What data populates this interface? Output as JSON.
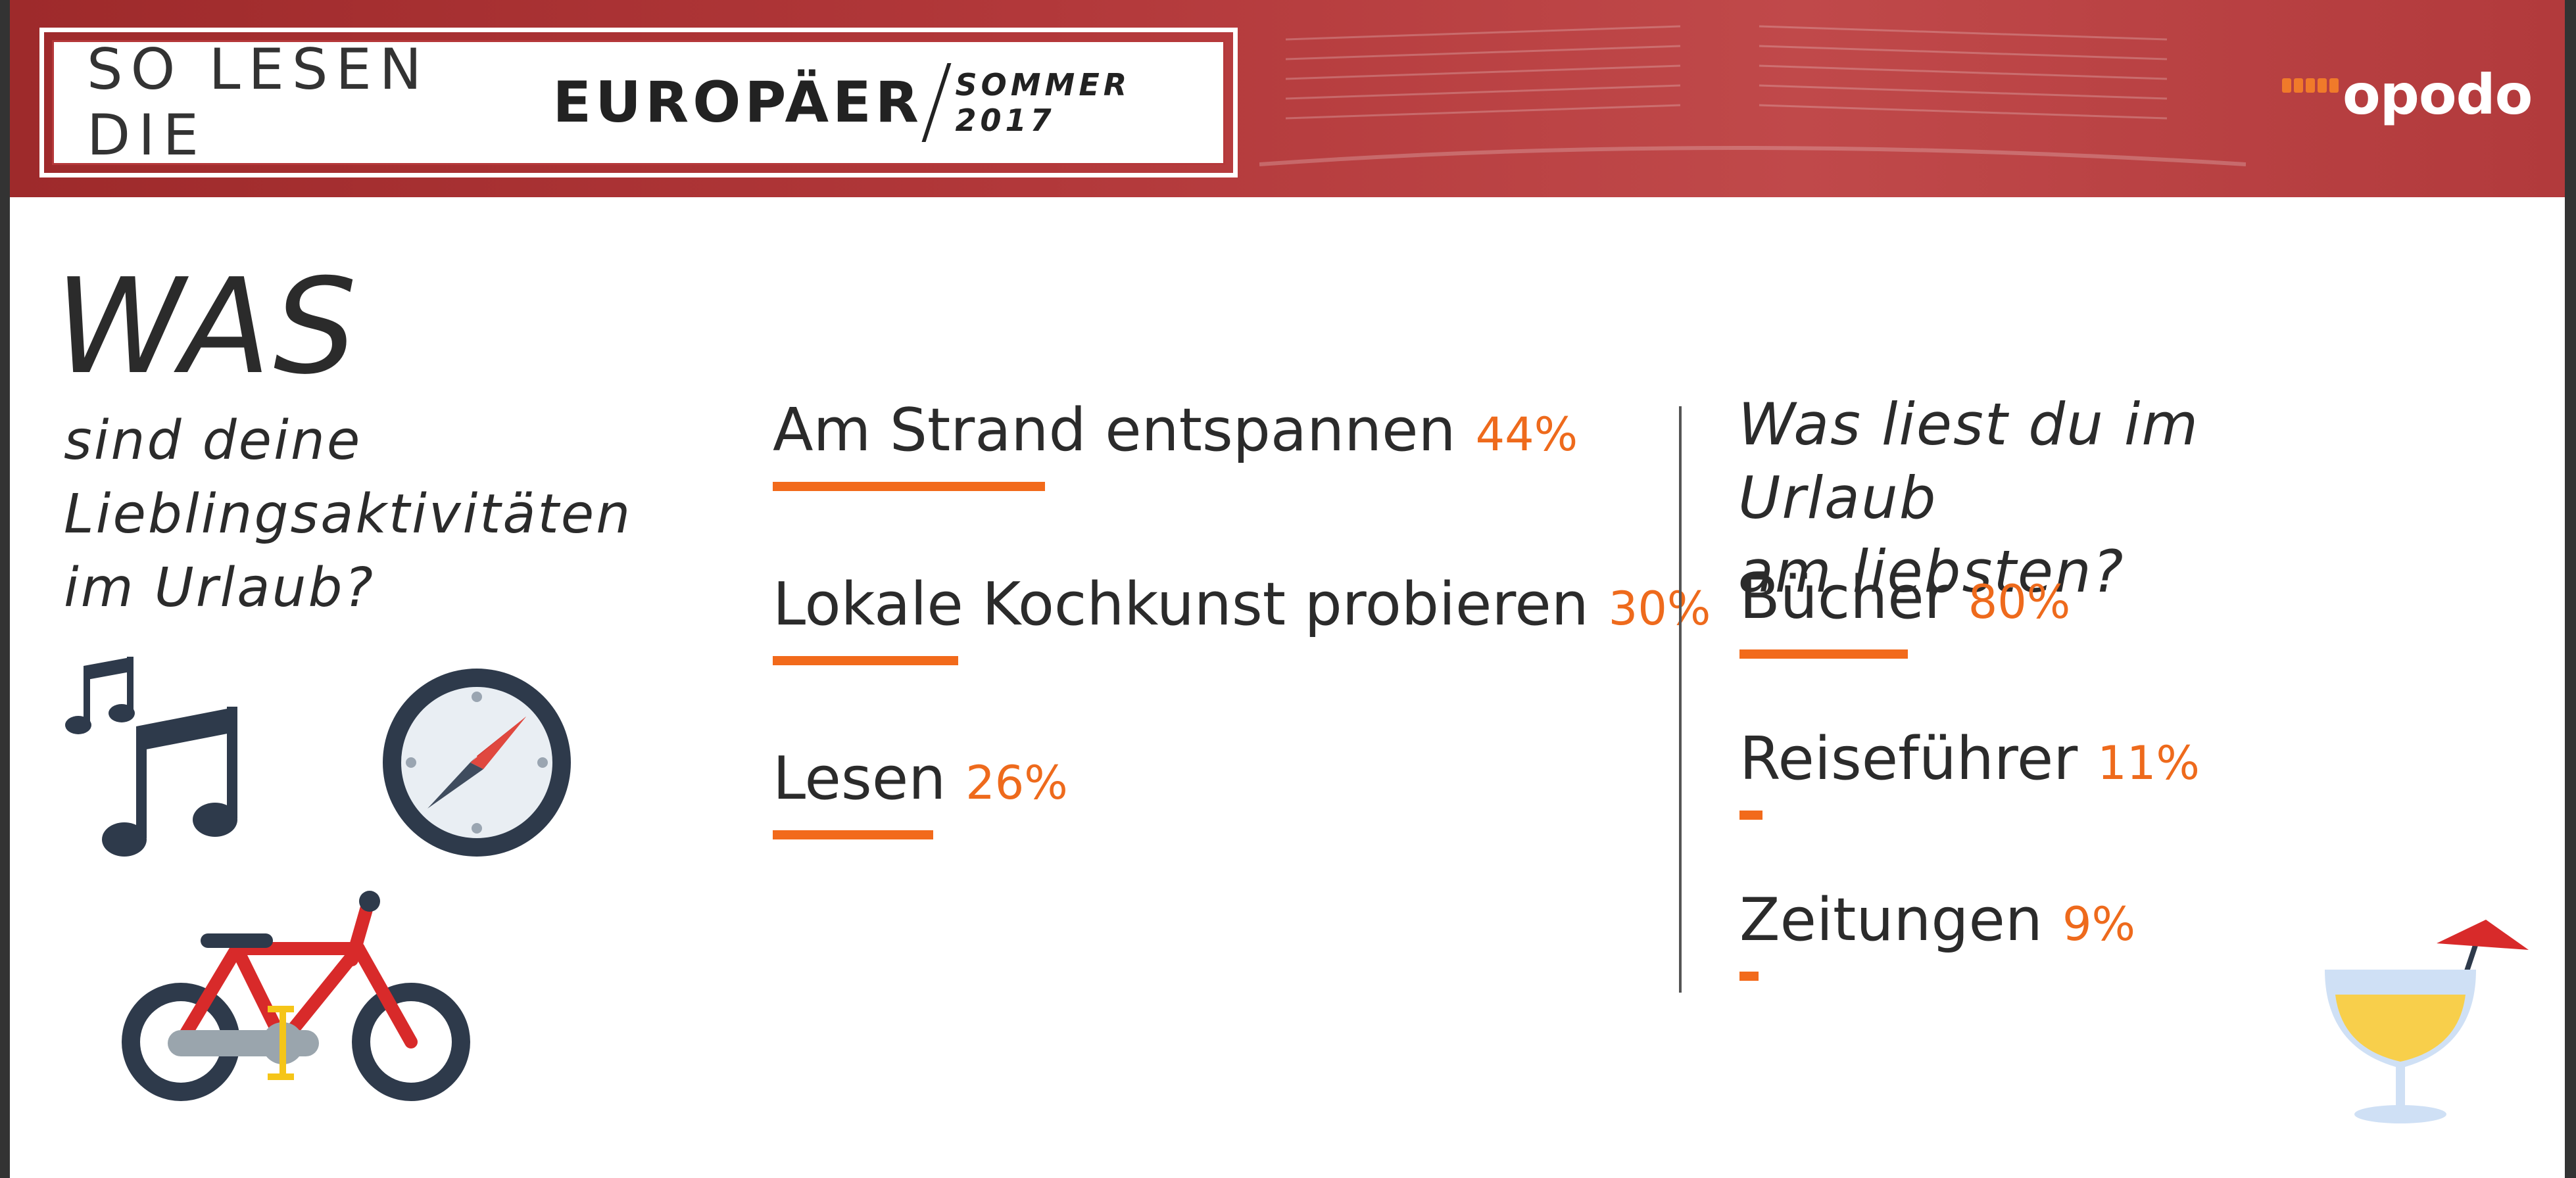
{
  "header": {
    "title_light": "SO LESEN DIE",
    "title_bold": "EUROPÄER",
    "season": "SOMMER 2017",
    "logo_text": "opodo",
    "brand_color": "#b5383a",
    "accent_color": "#f26a1b"
  },
  "left": {
    "headline": "WAS",
    "question_lines": [
      "sind deine",
      "Lieblingsaktivitäten",
      "im Urlaub?"
    ],
    "icons": [
      "music-notes-icon",
      "compass-icon",
      "bicycle-icon"
    ]
  },
  "right": {
    "question_lines": [
      "Was liest du im Urlaub",
      "am liebsten?"
    ],
    "icons": [
      "cocktail-icon"
    ]
  },
  "chart_data": [
    {
      "type": "bar",
      "orientation": "horizontal",
      "categories": [
        "Am Strand entspannen",
        "Lokale Kochkunst probieren",
        "Lesen"
      ],
      "values": [
        44,
        30,
        26
      ],
      "value_labels": [
        "44%",
        "30%",
        "26%"
      ],
      "unit": "%",
      "xlim": [
        0,
        100
      ]
    },
    {
      "type": "bar",
      "orientation": "horizontal",
      "categories": [
        "Bücher",
        "Reiseführer",
        "Zeitungen"
      ],
      "values": [
        80,
        11,
        9
      ],
      "value_labels": [
        "80%",
        "11%",
        "9%"
      ],
      "unit": "%",
      "xlim": [
        0,
        100
      ]
    }
  ]
}
